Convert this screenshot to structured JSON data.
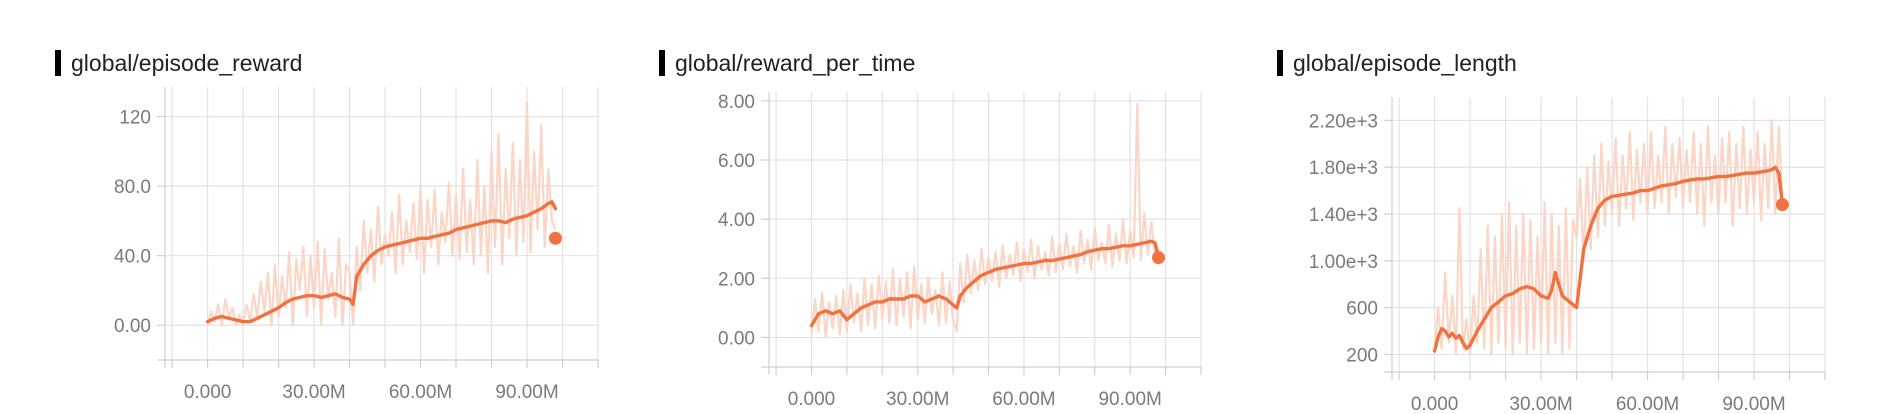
{
  "chart_data": [
    {
      "type": "line",
      "title": "global/episode_reward",
      "xlabel": "",
      "ylabel": "",
      "xlim": [
        -12,
        110
      ],
      "ylim": [
        -20,
        137
      ],
      "grid": true,
      "x_ticks": [
        0,
        30,
        60,
        90
      ],
      "x_tick_labels": [
        "0.000",
        "30.00M",
        "60.00M",
        "90.00M"
      ],
      "y_ticks": [
        0,
        40,
        80,
        120
      ],
      "y_tick_labels": [
        "0.00",
        "40.0",
        "80.0",
        "120"
      ],
      "colors": {
        "smoothed": "#f07240",
        "raw": "#fbd5c5"
      },
      "series": [
        {
          "kind": "smoothed",
          "x": [
            0,
            2,
            4,
            6,
            8,
            10,
            12,
            14,
            16,
            18,
            20,
            22,
            24,
            26,
            28,
            30,
            32,
            34,
            36,
            38,
            40,
            41,
            42,
            44,
            46,
            48,
            50,
            52,
            54,
            56,
            58,
            60,
            62,
            64,
            66,
            68,
            70,
            72,
            74,
            76,
            78,
            80,
            82,
            84,
            86,
            88,
            90,
            92,
            94,
            96,
            97,
            98
          ],
          "y": [
            2,
            4,
            5,
            4,
            3,
            2,
            2,
            4,
            6,
            8,
            10,
            13,
            15,
            16,
            17,
            17,
            16,
            17,
            18,
            16,
            15,
            12,
            28,
            35,
            40,
            43,
            45,
            46,
            47,
            48,
            49,
            50,
            50,
            51,
            52,
            53,
            55,
            56,
            57,
            58,
            59,
            60,
            60,
            59,
            61,
            62,
            63,
            65,
            67,
            70,
            71,
            67
          ]
        },
        {
          "kind": "raw",
          "x": [
            0,
            1,
            2,
            3,
            4,
            5,
            6,
            7,
            8,
            9,
            10,
            11,
            12,
            13,
            14,
            15,
            16,
            17,
            18,
            19,
            20,
            21,
            22,
            23,
            24,
            25,
            26,
            27,
            28,
            29,
            30,
            31,
            32,
            33,
            34,
            35,
            36,
            37,
            38,
            39,
            40,
            41,
            42,
            43,
            44,
            45,
            46,
            47,
            48,
            49,
            50,
            51,
            52,
            53,
            54,
            55,
            56,
            57,
            58,
            59,
            60,
            61,
            62,
            63,
            64,
            65,
            66,
            67,
            68,
            69,
            70,
            71,
            72,
            73,
            74,
            75,
            76,
            77,
            78,
            79,
            80,
            81,
            82,
            83,
            84,
            85,
            86,
            87,
            88,
            89,
            90,
            91,
            92,
            93,
            94,
            95,
            96,
            97,
            98
          ],
          "y": [
            0,
            8,
            2,
            12,
            0,
            15,
            5,
            10,
            0,
            6,
            0,
            12,
            2,
            18,
            4,
            25,
            8,
            30,
            0,
            35,
            5,
            28,
            10,
            42,
            0,
            38,
            20,
            45,
            5,
            40,
            10,
            48,
            0,
            44,
            15,
            30,
            5,
            50,
            0,
            35,
            30,
            0,
            45,
            20,
            60,
            30,
            55,
            25,
            68,
            35,
            52,
            40,
            65,
            30,
            75,
            35,
            60,
            42,
            70,
            38,
            80,
            30,
            72,
            45,
            78,
            35,
            65,
            48,
            82,
            40,
            75,
            38,
            90,
            42,
            72,
            35,
            95,
            40,
            80,
            30,
            100,
            45,
            110,
            35,
            90,
            50,
            105,
            40,
            95,
            48,
            128,
            42,
            100,
            55,
            115,
            45,
            90,
            60,
            55
          ]
        },
        {
          "kind": "endpoint",
          "x": [
            98
          ],
          "y": [
            50
          ]
        }
      ]
    },
    {
      "type": "line",
      "title": "global/reward_per_time",
      "xlabel": "",
      "ylabel": "",
      "xlim": [
        -12,
        110
      ],
      "ylim": [
        -1,
        8.3
      ],
      "grid": true,
      "x_ticks": [
        0,
        30,
        60,
        90
      ],
      "x_tick_labels": [
        "0.000",
        "30.00M",
        "60.00M",
        "90.00M"
      ],
      "y_ticks": [
        0,
        2,
        4,
        6,
        8
      ],
      "y_tick_labels": [
        "0.00",
        "2.00",
        "4.00",
        "6.00",
        "8.00"
      ],
      "colors": {
        "smoothed": "#f07240",
        "raw": "#fbd5c5"
      },
      "series": [
        {
          "kind": "smoothed",
          "x": [
            0,
            2,
            4,
            6,
            8,
            10,
            12,
            14,
            16,
            18,
            20,
            22,
            24,
            26,
            28,
            30,
            32,
            34,
            36,
            38,
            40,
            41,
            42,
            44,
            46,
            48,
            50,
            52,
            54,
            56,
            58,
            60,
            62,
            64,
            66,
            68,
            70,
            72,
            74,
            76,
            78,
            80,
            82,
            84,
            86,
            88,
            90,
            92,
            94,
            96,
            97,
            98
          ],
          "y": [
            0.4,
            0.8,
            0.9,
            0.8,
            0.9,
            0.6,
            0.8,
            1.0,
            1.1,
            1.2,
            1.2,
            1.3,
            1.3,
            1.3,
            1.4,
            1.4,
            1.2,
            1.3,
            1.4,
            1.3,
            1.1,
            1.0,
            1.4,
            1.7,
            1.9,
            2.1,
            2.2,
            2.3,
            2.35,
            2.4,
            2.45,
            2.5,
            2.5,
            2.55,
            2.6,
            2.6,
            2.65,
            2.7,
            2.75,
            2.8,
            2.9,
            2.95,
            3.0,
            3.0,
            3.05,
            3.1,
            3.1,
            3.15,
            3.2,
            3.25,
            3.2,
            2.7
          ]
        },
        {
          "kind": "raw",
          "x": [
            0,
            1,
            2,
            3,
            4,
            5,
            6,
            7,
            8,
            9,
            10,
            11,
            12,
            13,
            14,
            15,
            16,
            17,
            18,
            19,
            20,
            21,
            22,
            23,
            24,
            25,
            26,
            27,
            28,
            29,
            30,
            31,
            32,
            33,
            34,
            35,
            36,
            37,
            38,
            39,
            40,
            41,
            42,
            43,
            44,
            45,
            46,
            47,
            48,
            49,
            50,
            51,
            52,
            53,
            54,
            55,
            56,
            57,
            58,
            59,
            60,
            61,
            62,
            63,
            64,
            65,
            66,
            67,
            68,
            69,
            70,
            71,
            72,
            73,
            74,
            75,
            76,
            77,
            78,
            79,
            80,
            81,
            82,
            83,
            84,
            85,
            86,
            87,
            88,
            89,
            90,
            91,
            92,
            93,
            94,
            95,
            96,
            97,
            98
          ],
          "y": [
            0.1,
            1.3,
            0.2,
            1.5,
            0.0,
            1.2,
            0.3,
            1.4,
            0.1,
            1.6,
            0.2,
            1.8,
            0.5,
            1.5,
            0.2,
            2.0,
            0.4,
            1.8,
            0.3,
            2.1,
            0.6,
            1.9,
            0.5,
            2.3,
            0.4,
            2.0,
            0.7,
            2.2,
            0.3,
            2.4,
            0.6,
            1.8,
            0.5,
            2.0,
            0.8,
            1.6,
            0.4,
            2.2,
            0.5,
            1.9,
            0.6,
            0.2,
            2.5,
            1.2,
            2.8,
            1.5,
            2.6,
            1.6,
            3.0,
            1.8,
            2.7,
            1.9,
            2.9,
            1.7,
            3.1,
            2.0,
            2.8,
            2.1,
            3.2,
            1.9,
            3.0,
            2.2,
            3.3,
            2.0,
            3.1,
            2.3,
            2.9,
            2.1,
            3.4,
            2.2,
            3.2,
            2.3,
            3.5,
            2.4,
            3.1,
            2.2,
            3.6,
            2.5,
            3.3,
            2.3,
            3.7,
            2.6,
            3.2,
            2.5,
            3.8,
            2.4,
            3.5,
            2.6,
            4.0,
            2.5,
            3.6,
            2.7,
            7.9,
            2.6,
            4.2,
            2.8,
            3.9,
            2.7,
            3.0
          ]
        },
        {
          "kind": "endpoint",
          "x": [
            98
          ],
          "y": [
            2.7
          ]
        }
      ]
    },
    {
      "type": "line",
      "title": "global/episode_length",
      "xlabel": "",
      "ylabel": "",
      "xlim": [
        -12,
        110
      ],
      "ylim": [
        50,
        2400
      ],
      "grid": true,
      "x_ticks": [
        0,
        30,
        60,
        90
      ],
      "x_tick_labels": [
        "0.000",
        "30.00M",
        "60.00M",
        "90.00M"
      ],
      "y_ticks": [
        200,
        600,
        1000,
        1400,
        1800,
        2200
      ],
      "y_tick_labels": [
        "200",
        "600",
        "1.00e+3",
        "1.40e+3",
        "1.80e+3",
        "2.20e+3"
      ],
      "colors": {
        "smoothed": "#f07240",
        "raw": "#fbd5c5"
      },
      "series": [
        {
          "kind": "smoothed",
          "x": [
            0,
            1,
            2,
            3,
            4,
            5,
            6,
            7,
            8,
            9,
            10,
            12,
            14,
            16,
            18,
            20,
            22,
            24,
            26,
            28,
            30,
            32,
            33,
            34,
            35,
            36,
            38,
            40,
            42,
            44,
            46,
            48,
            50,
            52,
            54,
            56,
            58,
            60,
            62,
            64,
            66,
            68,
            70,
            72,
            74,
            76,
            78,
            80,
            82,
            84,
            86,
            88,
            90,
            92,
            94,
            95,
            96,
            97,
            98
          ],
          "y": [
            230,
            350,
            420,
            400,
            350,
            380,
            340,
            360,
            300,
            250,
            280,
            400,
            500,
            600,
            650,
            700,
            720,
            760,
            780,
            760,
            700,
            680,
            750,
            900,
            800,
            700,
            650,
            600,
            1100,
            1300,
            1450,
            1520,
            1550,
            1560,
            1570,
            1580,
            1600,
            1600,
            1620,
            1640,
            1650,
            1660,
            1680,
            1690,
            1700,
            1700,
            1710,
            1720,
            1720,
            1730,
            1740,
            1750,
            1750,
            1760,
            1770,
            1780,
            1800,
            1750,
            1480
          ]
        },
        {
          "kind": "raw",
          "x": [
            0,
            1,
            2,
            3,
            4,
            5,
            6,
            7,
            8,
            9,
            10,
            11,
            12,
            13,
            14,
            15,
            16,
            17,
            18,
            19,
            20,
            21,
            22,
            23,
            24,
            25,
            26,
            27,
            28,
            29,
            30,
            31,
            32,
            33,
            34,
            35,
            36,
            37,
            38,
            39,
            40,
            41,
            42,
            43,
            44,
            45,
            46,
            47,
            48,
            49,
            50,
            51,
            52,
            53,
            54,
            55,
            56,
            57,
            58,
            59,
            60,
            61,
            62,
            63,
            64,
            65,
            66,
            67,
            68,
            69,
            70,
            71,
            72,
            73,
            74,
            75,
            76,
            77,
            78,
            79,
            80,
            81,
            82,
            83,
            84,
            85,
            86,
            87,
            88,
            89,
            90,
            91,
            92,
            93,
            94,
            95,
            96,
            97,
            98
          ],
          "y": [
            200,
            600,
            250,
            900,
            300,
            700,
            200,
            1450,
            250,
            500,
            200,
            700,
            300,
            1100,
            250,
            1300,
            200,
            1200,
            300,
            1400,
            250,
            1500,
            200,
            1300,
            300,
            1400,
            200,
            1350,
            250,
            1200,
            300,
            1500,
            200,
            1400,
            300,
            1300,
            200,
            1450,
            250,
            1350,
            1200,
            1700,
            1000,
            1800,
            1100,
            1900,
            1200,
            2000,
            1300,
            1850,
            1400,
            2050,
            1300,
            1900,
            1450,
            2100,
            1350,
            1950,
            1500,
            2000,
            1400,
            2100,
            1450,
            1900,
            1500,
            2150,
            1400,
            2000,
            1550,
            2050,
            1450,
            1950,
            1500,
            2100,
            1400,
            2000,
            1300,
            2150,
            1500,
            1900,
            1400,
            2050,
            1500,
            2100,
            1300,
            2000,
            1450,
            2150,
            1400,
            1950,
            1500,
            2100,
            1350,
            2000,
            1450,
            2200,
            1400,
            2150,
            1500
          ]
        },
        {
          "kind": "endpoint",
          "x": [
            98
          ],
          "y": [
            1480
          ]
        }
      ]
    }
  ]
}
